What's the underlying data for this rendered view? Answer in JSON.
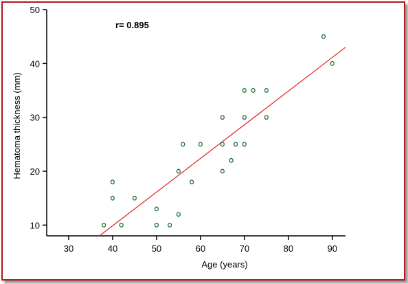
{
  "chart_data": {
    "type": "scatter",
    "title": "",
    "xlabel": "Age (years)",
    "ylabel": "Hematoma thickness (mm)",
    "xlim": [
      25,
      93
    ],
    "ylim": [
      8,
      50
    ],
    "xticks": [
      30,
      40,
      50,
      60,
      70,
      80,
      90
    ],
    "yticks": [
      10,
      20,
      30,
      40,
      50
    ],
    "grid": false,
    "annotation": "r= 0.895",
    "colors": {
      "points": "#1a6b2a",
      "regression_line": "#e02020",
      "frame": "#b01818"
    },
    "points": [
      {
        "x": 38,
        "y": 10
      },
      {
        "x": 40,
        "y": 18
      },
      {
        "x": 40,
        "y": 15
      },
      {
        "x": 42,
        "y": 10
      },
      {
        "x": 45,
        "y": 15
      },
      {
        "x": 50,
        "y": 13
      },
      {
        "x": 50,
        "y": 10
      },
      {
        "x": 53,
        "y": 10
      },
      {
        "x": 55,
        "y": 12
      },
      {
        "x": 55,
        "y": 20
      },
      {
        "x": 56,
        "y": 25
      },
      {
        "x": 58,
        "y": 18
      },
      {
        "x": 60,
        "y": 25
      },
      {
        "x": 65,
        "y": 30
      },
      {
        "x": 65,
        "y": 25
      },
      {
        "x": 65,
        "y": 20
      },
      {
        "x": 67,
        "y": 22
      },
      {
        "x": 68,
        "y": 25
      },
      {
        "x": 70,
        "y": 35
      },
      {
        "x": 70,
        "y": 30
      },
      {
        "x": 70,
        "y": 25
      },
      {
        "x": 72,
        "y": 35
      },
      {
        "x": 75,
        "y": 35
      },
      {
        "x": 75,
        "y": 30
      },
      {
        "x": 88,
        "y": 45
      },
      {
        "x": 90,
        "y": 40
      }
    ],
    "regression_line": {
      "start": {
        "x": 37,
        "y": 8
      },
      "end": {
        "x": 93,
        "y": 43
      }
    }
  }
}
